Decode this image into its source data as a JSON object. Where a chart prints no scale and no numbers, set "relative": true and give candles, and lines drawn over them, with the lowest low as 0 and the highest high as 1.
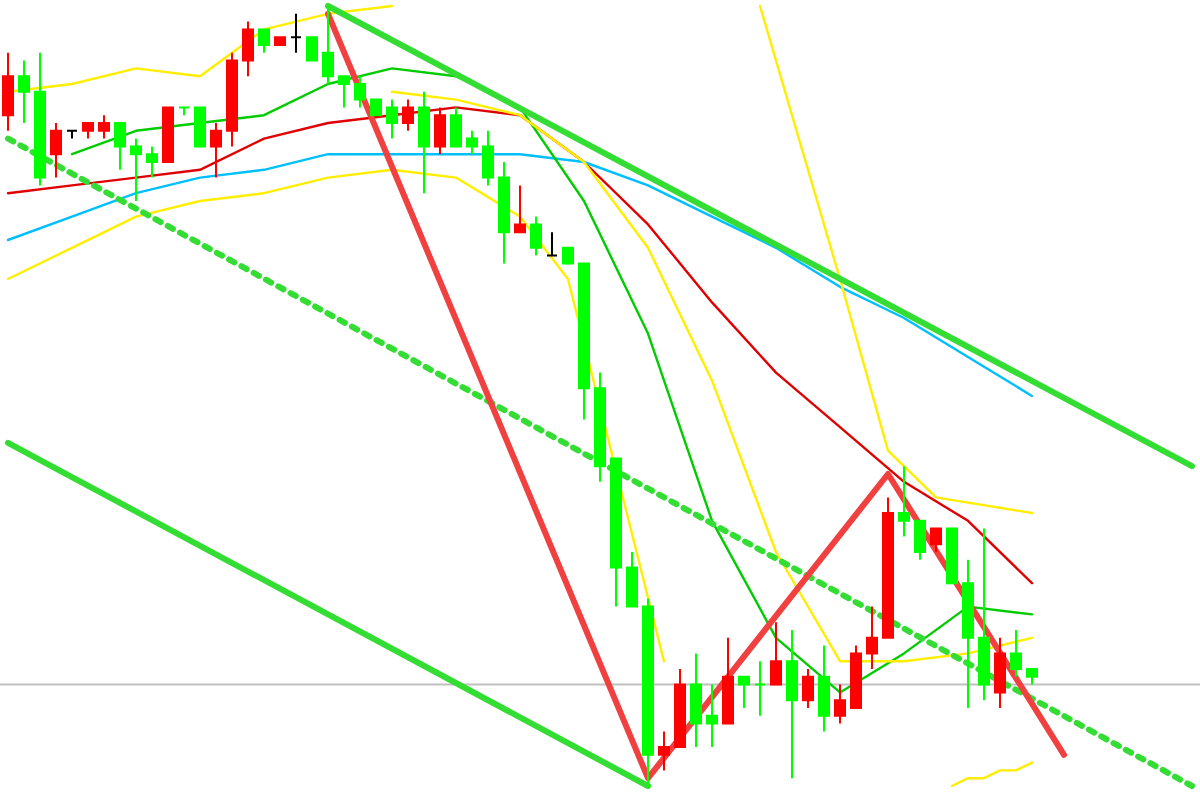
{
  "chart_data": {
    "type": "candlestick",
    "relative": true,
    "categories": [
      null,
      null,
      null,
      null,
      null,
      null,
      null,
      null,
      null,
      null,
      null,
      null,
      null,
      null,
      null,
      null,
      null,
      null,
      null,
      null,
      null,
      null,
      null,
      null,
      null,
      null,
      null,
      null,
      null,
      null,
      null,
      null,
      null,
      null,
      null,
      null,
      null,
      null,
      null,
      null,
      null,
      null,
      null,
      null,
      null,
      null,
      null,
      null,
      null,
      null,
      null,
      null,
      null,
      null,
      null,
      null,
      null,
      null,
      null,
      null,
      null,
      null,
      null,
      null,
      null,
      null,
      null,
      null,
      null,
      null,
      null,
      null,
      null,
      null,
      null
    ],
    "ohlc": [
      [
        0.86,
        0.94,
        0.84,
        0.91
      ],
      [
        0.91,
        0.93,
        0.85,
        0.89
      ],
      [
        0.89,
        0.94,
        0.77,
        0.78
      ],
      [
        0.81,
        0.85,
        0.78,
        0.84
      ],
      [
        0.84,
        0.84,
        0.83,
        0.84
      ],
      [
        0.84,
        0.85,
        0.83,
        0.85
      ],
      [
        0.84,
        0.86,
        0.83,
        0.85
      ],
      [
        0.85,
        0.85,
        0.79,
        0.82
      ],
      [
        0.82,
        0.83,
        0.75,
        0.81
      ],
      [
        0.81,
        0.82,
        0.78,
        0.8
      ],
      [
        0.8,
        0.87,
        0.8,
        0.87
      ],
      [
        0.87,
        0.87,
        0.86,
        0.87
      ],
      [
        0.87,
        0.87,
        0.82,
        0.82
      ],
      [
        0.82,
        0.85,
        0.78,
        0.84
      ],
      [
        0.84,
        0.94,
        0.82,
        0.93
      ],
      [
        0.93,
        0.98,
        0.91,
        0.97
      ],
      [
        0.97,
        0.97,
        0.94,
        0.95
      ],
      [
        0.95,
        0.96,
        0.95,
        0.96
      ],
      [
        0.96,
        0.99,
        0.94,
        0.96
      ],
      [
        0.96,
        0.96,
        0.93,
        0.93
      ],
      [
        0.94,
        1.0,
        0.9,
        0.91
      ],
      [
        0.91,
        0.91,
        0.87,
        0.9
      ],
      [
        0.9,
        0.91,
        0.87,
        0.88
      ],
      [
        0.88,
        0.88,
        0.86,
        0.86
      ],
      [
        0.87,
        0.88,
        0.83,
        0.85
      ],
      [
        0.85,
        0.88,
        0.84,
        0.87
      ],
      [
        0.87,
        0.89,
        0.76,
        0.82
      ],
      [
        0.82,
        0.87,
        0.81,
        0.86
      ],
      [
        0.86,
        0.87,
        0.82,
        0.82
      ],
      [
        0.83,
        0.84,
        0.81,
        0.82
      ],
      [
        0.82,
        0.84,
        0.77,
        0.78
      ],
      [
        0.78,
        0.8,
        0.67,
        0.71
      ],
      [
        0.71,
        0.77,
        0.71,
        0.72
      ],
      [
        0.72,
        0.73,
        0.68,
        0.69
      ],
      [
        0.68,
        0.71,
        0.68,
        0.68
      ],
      [
        0.69,
        0.69,
        0.67,
        0.67
      ],
      [
        0.67,
        0.67,
        0.47,
        0.51
      ],
      [
        0.51,
        0.53,
        0.39,
        0.41
      ],
      [
        0.42,
        0.42,
        0.23,
        0.28
      ],
      [
        0.28,
        0.3,
        0.23,
        0.23
      ],
      [
        0.23,
        0.24,
        0.0,
        0.04
      ],
      [
        0.04,
        0.07,
        0.02,
        0.05
      ],
      [
        0.05,
        0.15,
        0.05,
        0.13
      ],
      [
        0.13,
        0.17,
        0.05,
        0.08
      ],
      [
        0.09,
        0.13,
        0.05,
        0.08
      ],
      [
        0.08,
        0.19,
        0.08,
        0.14
      ],
      [
        0.14,
        0.14,
        0.1,
        0.13
      ],
      [
        0.13,
        0.16,
        0.09,
        0.13
      ],
      [
        0.13,
        0.21,
        0.13,
        0.16
      ],
      [
        0.16,
        0.2,
        0.01,
        0.11
      ],
      [
        0.11,
        0.15,
        0.1,
        0.14
      ],
      [
        0.14,
        0.18,
        0.07,
        0.09
      ],
      [
        0.09,
        0.13,
        0.08,
        0.11
      ],
      [
        0.1,
        0.18,
        0.1,
        0.17
      ],
      [
        0.17,
        0.23,
        0.15,
        0.19
      ],
      [
        0.19,
        0.37,
        0.19,
        0.35
      ],
      [
        0.35,
        0.41,
        0.32,
        0.34
      ],
      [
        0.34,
        0.34,
        0.29,
        0.3
      ],
      [
        0.31,
        0.33,
        0.3,
        0.33
      ],
      [
        0.33,
        0.33,
        0.26,
        0.26
      ],
      [
        0.26,
        0.29,
        0.1,
        0.19
      ],
      [
        0.19,
        0.33,
        0.11,
        0.13
      ],
      [
        0.12,
        0.19,
        0.1,
        0.17
      ],
      [
        0.17,
        0.2,
        0.14,
        0.15
      ],
      [
        0.15,
        0.15,
        0.13,
        0.14
      ],
      null,
      null,
      null,
      null,
      null,
      null,
      null,
      null,
      null,
      null
    ],
    "colors": [
      "#ff0000",
      "#00ff00",
      "#00ff00",
      "#ff0000",
      "#000000",
      "#ff0000",
      "#ff0000",
      "#00ff00",
      "#00ff00",
      "#00ff00",
      "#ff0000",
      "#00ff00",
      "#00ff00",
      "#ff0000",
      "#ff0000",
      "#ff0000",
      "#00ff00",
      "#ff0000",
      "#000000",
      "#00ff00",
      "#00ff00",
      "#00ff00",
      "#00ff00",
      "#00ff00",
      "#00ff00",
      "#ff0000",
      "#00ff00",
      "#ff0000",
      "#00ff00",
      "#00ff00",
      "#00ff00",
      "#00ff00",
      "#ff0000",
      "#00ff00",
      "#000000",
      "#00ff00",
      "#00ff00",
      "#00ff00",
      "#00ff00",
      "#00ff00",
      "#00ff00",
      "#ff0000",
      "#ff0000",
      "#00ff00",
      "#00ff00",
      "#ff0000",
      "#00ff00",
      "#00ff00",
      "#ff0000",
      "#00ff00",
      "#ff0000",
      "#00ff00",
      "#ff0000",
      "#ff0000",
      "#ff0000",
      "#ff0000",
      "#00ff00",
      "#00ff00",
      "#ff0000",
      "#00ff00",
      "#00ff00",
      "#00ff00",
      "#ff0000",
      "#00ff00",
      "#00ff00",
      null,
      null,
      null,
      null,
      null,
      null,
      null,
      null,
      null,
      null
    ],
    "series": [
      {
        "type": "line",
        "color": "#e00000",
        "values": [
          0.76,
          null,
          null,
          null,
          0.77,
          null,
          null,
          null,
          0.78,
          null,
          null,
          null,
          0.79,
          null,
          null,
          null,
          0.83,
          null,
          null,
          null,
          0.85,
          null,
          null,
          null,
          0.86,
          null,
          null,
          null,
          0.87,
          null,
          null,
          null,
          0.86,
          null,
          null,
          null,
          0.8,
          null,
          null,
          null,
          0.72,
          null,
          null,
          null,
          0.62,
          null,
          null,
          null,
          0.53,
          null,
          null,
          null,
          0.46,
          null,
          null,
          null,
          0.39,
          null,
          null,
          null,
          0.34,
          null,
          null,
          null,
          0.26,
          null,
          null,
          null,
          null,
          null,
          null,
          null,
          null,
          null,
          null
        ]
      },
      {
        "type": "line",
        "color": "#00bfff",
        "values": [
          0.7,
          null,
          null,
          null,
          0.73,
          null,
          null,
          null,
          0.76,
          null,
          null,
          null,
          0.78,
          null,
          null,
          null,
          0.79,
          null,
          null,
          null,
          0.81,
          null,
          null,
          null,
          0.81,
          null,
          null,
          null,
          0.81,
          null,
          null,
          null,
          0.81,
          null,
          null,
          null,
          0.8,
          null,
          null,
          null,
          0.77,
          null,
          null,
          null,
          0.73,
          null,
          null,
          null,
          0.69,
          null,
          null,
          null,
          0.64,
          null,
          null,
          null,
          0.6,
          null,
          null,
          null,
          0.55,
          null,
          null,
          null,
          0.5,
          null,
          null,
          null,
          null,
          null,
          null,
          null,
          null,
          null,
          null
        ]
      },
      {
        "type": "line",
        "color": "#00cc00",
        "values": [
          null,
          null,
          null,
          null,
          0.81,
          null,
          null,
          null,
          0.84,
          null,
          null,
          null,
          0.85,
          null,
          null,
          null,
          0.86,
          null,
          null,
          null,
          0.9,
          null,
          null,
          null,
          0.92,
          null,
          null,
          null,
          0.91,
          null,
          null,
          null,
          0.87,
          null,
          null,
          null,
          0.75,
          null,
          null,
          null,
          0.58,
          null,
          null,
          null,
          0.34,
          null,
          null,
          null,
          0.19,
          null,
          null,
          null,
          0.12,
          null,
          null,
          null,
          0.17,
          null,
          null,
          null,
          0.23,
          null,
          null,
          null,
          0.22,
          null,
          null,
          null,
          null,
          null,
          null,
          null,
          null,
          null,
          null
        ]
      },
      {
        "type": "line",
        "color": "#ffee00",
        "values": [
          0.89,
          null,
          null,
          null,
          0.9,
          null,
          null,
          null,
          0.92,
          null,
          null,
          null,
          0.91,
          null,
          null,
          null,
          0.97,
          null,
          null,
          null,
          0.99,
          null,
          null,
          null,
          1.0,
          null,
          null,
          null,
          null,
          null,
          null,
          null,
          null,
          null,
          null,
          null,
          null,
          null,
          null,
          null,
          null,
          null,
          null,
          null,
          null,
          null,
          null,
          null,
          null,
          null,
          null,
          null,
          null,
          null,
          null,
          null,
          null,
          null,
          null,
          null,
          null,
          null,
          null,
          null,
          null,
          null,
          null,
          null,
          null,
          null,
          null,
          null,
          null,
          null,
          null
        ]
      },
      {
        "type": "line",
        "color": "#ffee00",
        "values": [
          null,
          null,
          null,
          null,
          null,
          null,
          null,
          null,
          null,
          null,
          null,
          null,
          null,
          null,
          null,
          null,
          null,
          null,
          null,
          null,
          null,
          null,
          null,
          null,
          0.89,
          null,
          null,
          null,
          0.88,
          null,
          null,
          null,
          0.86,
          null,
          null,
          null,
          0.8,
          null,
          null,
          null,
          0.69,
          null,
          null,
          null,
          0.52,
          null,
          null,
          null,
          0.3,
          null,
          null,
          null,
          0.16,
          null,
          null,
          null,
          0.16,
          null,
          null,
          null,
          0.17,
          null,
          null,
          null,
          0.19,
          null,
          null,
          null,
          null,
          null,
          null,
          null,
          null,
          null,
          null
        ]
      },
      {
        "type": "line",
        "color": "#ffee00",
        "values": [
          0.65,
          null,
          null,
          null,
          0.69,
          null,
          null,
          null,
          0.73,
          null,
          null,
          null,
          0.75,
          null,
          null,
          null,
          0.76,
          null,
          null,
          null,
          0.78,
          null,
          null,
          null,
          0.79,
          null,
          null,
          null,
          0.78,
          null,
          null,
          null,
          0.73,
          null,
          null,
          0.65,
          null,
          null,
          null,
          null,
          null,
          0.16,
          null,
          null,
          null,
          null,
          null,
          null,
          null,
          null,
          null,
          null,
          null,
          null,
          null,
          null,
          null,
          null,
          null,
          null,
          null,
          null,
          null,
          null,
          null,
          null,
          null,
          null,
          null,
          null,
          null,
          null,
          null,
          null,
          null
        ]
      },
      {
        "type": "line",
        "color": "#ffee00",
        "values": [
          null,
          null,
          null,
          null,
          null,
          null,
          null,
          null,
          null,
          null,
          null,
          null,
          null,
          null,
          null,
          null,
          null,
          null,
          null,
          null,
          null,
          null,
          null,
          null,
          null,
          null,
          null,
          null,
          null,
          null,
          null,
          null,
          null,
          null,
          null,
          null,
          null,
          null,
          null,
          null,
          null,
          null,
          null,
          null,
          null,
          null,
          null,
          null,
          null,
          null,
          null,
          null,
          null,
          null,
          null,
          null,
          null,
          null,
          null,
          0.0,
          0.01,
          0.01,
          0.02,
          0.02,
          0.03,
          null,
          null,
          null,
          null,
          null,
          null,
          null,
          null,
          null,
          null
        ]
      },
      {
        "type": "line",
        "color": "#ffee00",
        "values": [
          null,
          null,
          null,
          null,
          null,
          null,
          null,
          null,
          null,
          null,
          null,
          null,
          null,
          null,
          null,
          null,
          null,
          null,
          null,
          null,
          null,
          null,
          null,
          null,
          null,
          null,
          null,
          null,
          null,
          null,
          null,
          null,
          null,
          null,
          null,
          null,
          null,
          null,
          null,
          null,
          null,
          null,
          null,
          null,
          null,
          null,
          null,
          1.0,
          null,
          null,
          null,
          null,
          0.65,
          null,
          null,
          0.43,
          null,
          null,
          0.37,
          null,
          null,
          null,
          null,
          null,
          0.35,
          null,
          null,
          null,
          null,
          null,
          null,
          null,
          null,
          null,
          null
        ]
      },
      {
        "type": "line",
        "color": "#33dd33",
        "values": [
          null,
          null,
          null,
          null,
          null,
          null,
          null,
          null,
          null,
          null,
          null,
          null,
          null,
          null,
          null,
          null,
          null,
          null,
          null,
          null,
          1.0,
          null,
          null,
          null,
          null,
          null,
          null,
          null,
          null,
          null,
          null,
          null,
          null,
          null,
          null,
          null,
          null,
          null,
          null,
          null,
          null,
          null,
          null,
          null,
          null,
          null,
          null,
          null,
          null,
          null,
          null,
          null,
          null,
          null,
          null,
          null,
          null,
          null,
          null,
          null,
          null,
          null,
          null,
          null,
          null,
          null,
          null,
          null,
          null,
          null,
          null,
          null,
          null,
          null,
          0.41
        ]
      },
      {
        "type": "line",
        "color": "#33dd33",
        "values": [
          0.44,
          null,
          null,
          null,
          null,
          null,
          null,
          null,
          null,
          null,
          null,
          null,
          null,
          null,
          null,
          null,
          null,
          null,
          null,
          null,
          null,
          null,
          null,
          null,
          null,
          null,
          null,
          null,
          null,
          null,
          null,
          null,
          null,
          null,
          null,
          null,
          null,
          null,
          null,
          null,
          0.0,
          null,
          null,
          null,
          null,
          null,
          null,
          null,
          null,
          null,
          null,
          null,
          null,
          null,
          null,
          null,
          null,
          null,
          null,
          null,
          null,
          null,
          null,
          null,
          null,
          null,
          null,
          null,
          null,
          null,
          null,
          null,
          null,
          null,
          null
        ]
      },
      {
        "type": "line",
        "color": "#33dd33",
        "line_style": "dashed",
        "values": [
          0.83,
          null,
          null,
          null,
          null,
          null,
          null,
          null,
          null,
          null,
          null,
          null,
          null,
          null,
          null,
          null,
          null,
          null,
          null,
          null,
          null,
          null,
          null,
          null,
          null,
          null,
          null,
          null,
          null,
          null,
          null,
          null,
          null,
          null,
          null,
          null,
          null,
          null,
          null,
          null,
          null,
          null,
          null,
          null,
          null,
          null,
          null,
          null,
          null,
          null,
          null,
          null,
          null,
          null,
          null,
          null,
          null,
          null,
          null,
          null,
          null,
          null,
          null,
          null,
          null,
          null,
          null,
          null,
          null,
          null,
          null,
          null,
          null,
          null,
          0.0
        ]
      },
      {
        "type": "line",
        "color": "#f04040",
        "values": [
          null,
          null,
          null,
          null,
          null,
          null,
          null,
          null,
          null,
          null,
          null,
          null,
          null,
          null,
          null,
          null,
          null,
          null,
          null,
          null,
          0.99,
          null,
          null,
          null,
          null,
          null,
          null,
          null,
          null,
          null,
          null,
          null,
          null,
          null,
          null,
          null,
          null,
          null,
          null,
          null,
          0.01,
          null,
          null,
          null,
          null,
          null,
          null,
          null,
          null,
          null,
          null,
          null,
          null,
          null,
          null,
          0.4,
          null,
          null,
          null,
          null,
          null,
          null,
          null,
          null,
          null,
          null,
          0.04,
          null,
          null,
          null,
          null,
          null,
          null,
          null,
          null
        ]
      }
    ],
    "ref_lines": [
      {
        "axis": "y",
        "value": 0.13,
        "color": "#c0c0c0"
      }
    ]
  }
}
